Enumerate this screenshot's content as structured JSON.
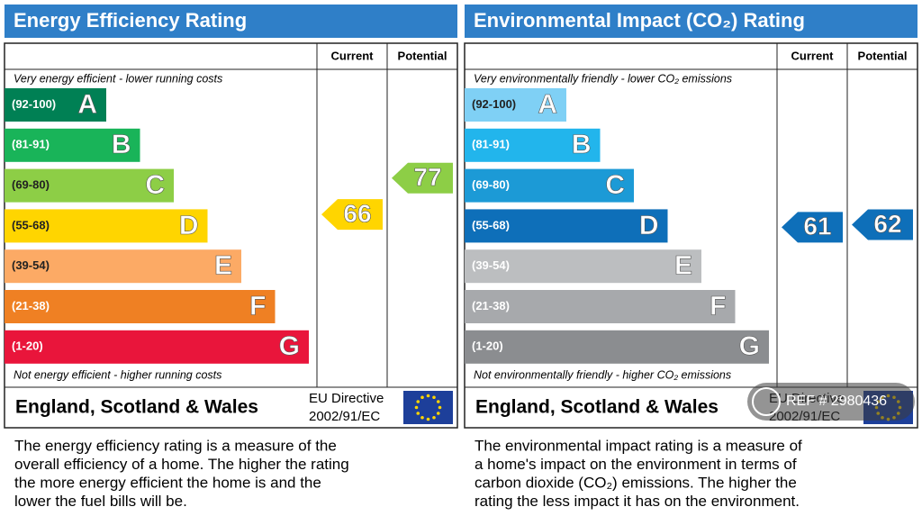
{
  "panels": [
    {
      "title": "Energy Efficiency Rating",
      "col_current": "Current",
      "col_potential": "Potential",
      "top_note": "Very energy efficient - lower running costs",
      "bottom_note": "Not energy efficient - higher running costs",
      "bands": [
        {
          "range": "(92-100)",
          "letter": "A",
          "color": "#008054"
        },
        {
          "range": "(81-91)",
          "letter": "B",
          "color": "#19b459"
        },
        {
          "range": "(69-80)",
          "letter": "C",
          "color": "#8dce46"
        },
        {
          "range": "(55-68)",
          "letter": "D",
          "color": "#ffd500"
        },
        {
          "range": "(39-54)",
          "letter": "E",
          "color": "#fcaa65"
        },
        {
          "range": "(21-38)",
          "letter": "F",
          "color": "#ef8023"
        },
        {
          "range": "(1-20)",
          "letter": "G",
          "color": "#e9153b"
        }
      ],
      "current": 66,
      "potential": 77,
      "region": "England, Scotland & Wales",
      "directive": [
        "EU Directive",
        "2002/91/EC"
      ],
      "description": [
        "The energy efficiency rating is a measure of the",
        "overall efficiency of a home. The higher the rating",
        "the more energy efficient the home is and the",
        "lower the fuel bills will be."
      ]
    },
    {
      "title": "Environmental Impact (CO₂) Rating",
      "col_current": "Current",
      "col_potential": "Potential",
      "top_note": "Very environmentally friendly - lower CO₂ emissions",
      "bottom_note": "Not environmentally friendly - higher CO₂ emissions",
      "bands": [
        {
          "range": "(92-100)",
          "letter": "A",
          "color": "#7fd0f5"
        },
        {
          "range": "(81-91)",
          "letter": "B",
          "color": "#22b5ec"
        },
        {
          "range": "(69-80)",
          "letter": "C",
          "color": "#1c9ad6"
        },
        {
          "range": "(55-68)",
          "letter": "D",
          "color": "#0e6fb9"
        },
        {
          "range": "(39-54)",
          "letter": "E",
          "color": "#bcbec0"
        },
        {
          "range": "(21-38)",
          "letter": "F",
          "color": "#a7a9ac"
        },
        {
          "range": "(1-20)",
          "letter": "G",
          "color": "#8b8d90"
        }
      ],
      "current": 61,
      "potential": 62,
      "region": "England, Scotland & Wales",
      "directive": [
        "EU Directive",
        "2002/91/EC"
      ],
      "description": [
        "The environmental impact rating is a measure of",
        "a home's impact on the environment in terms of",
        "carbon dioxide (CO₂) emissions. The higher the",
        "rating the less impact it has on the environment."
      ]
    }
  ],
  "watermark": "REF # 2980436"
}
